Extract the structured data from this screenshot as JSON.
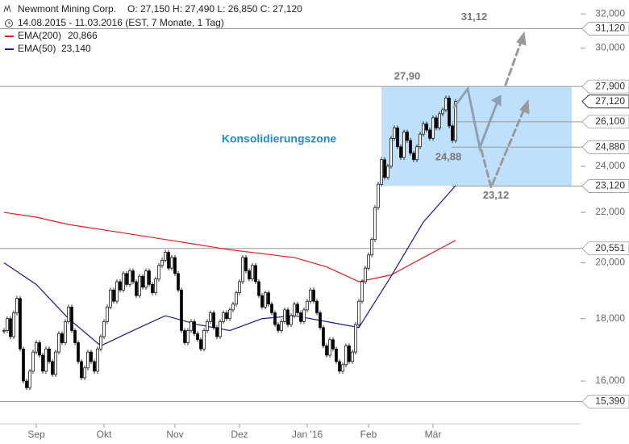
{
  "chart_data": {
    "type": "candlestick",
    "header": {
      "title": "Newmont Mining Corp.",
      "ohlc": "O: 27,150  H: 27,490  L: 26,850  C: 27,120",
      "period": "14.08.2015 - 11.03.2016 (EST, 7 Monate, 1 Tag)"
    },
    "log_scale": true,
    "ylim": [
      15.1,
      32.4
    ],
    "xlim": [
      -1.25,
      178.75
    ],
    "yticks": [
      {
        "value": 32,
        "label": "32,000"
      },
      {
        "value": 30,
        "label": "30,000"
      },
      {
        "value": 24,
        "label": "24,000"
      },
      {
        "value": 22,
        "label": "22,000"
      },
      {
        "value": 20,
        "label": "20,000"
      },
      {
        "value": 18,
        "label": "18,000"
      },
      {
        "value": 16,
        "label": "16,000"
      }
    ],
    "xticks": [
      {
        "value": 10,
        "label": "Sep"
      },
      {
        "value": 31,
        "label": "Okt"
      },
      {
        "value": 53,
        "label": "Nov"
      },
      {
        "value": 73,
        "label": "Dez"
      },
      {
        "value": 94,
        "label": "Jan '16"
      },
      {
        "value": 113,
        "label": "Feb"
      },
      {
        "value": 133,
        "label": "Mär"
      }
    ],
    "series": [
      {
        "name": "Newmont Mining Corp.",
        "color": "#000000",
        "values": [
          17.6,
          18.0,
          17.4,
          18.2,
          18.7,
          17.0,
          16.0,
          15.8,
          16.3,
          16.9,
          17.2,
          16.8,
          16.3,
          17.0,
          16.6,
          16.2,
          16.9,
          17.5,
          17.2,
          17.9,
          18.4,
          17.6,
          17.2,
          16.6,
          16.1,
          16.4,
          16.9,
          16.6,
          16.3,
          17.0,
          17.4,
          17.9,
          18.4,
          19.0,
          18.6,
          19.3,
          19.0,
          19.6,
          19.2,
          19.7,
          19.3,
          18.8,
          19.5,
          19.1,
          19.7,
          19.2,
          18.9,
          19.4,
          19.9,
          20.1,
          20.4,
          19.8,
          20.2,
          19.6,
          19.0,
          17.6,
          17.2,
          17.6,
          17.9,
          17.5,
          17.3,
          17.0,
          17.6,
          17.9,
          18.2,
          17.7,
          17.4,
          17.9,
          18.2,
          18.0,
          18.3,
          18.5,
          18.9,
          19.3,
          20.2,
          19.7,
          19.4,
          19.9,
          19.3,
          18.8,
          18.4,
          18.9,
          18.5,
          18.2,
          17.8,
          17.6,
          17.9,
          18.3,
          17.8,
          18.1,
          18.5,
          18.2,
          17.9,
          18.3,
          18.6,
          19.0,
          18.6,
          18.2,
          17.7,
          17.1,
          16.8,
          17.3,
          17.0,
          16.6,
          16.3,
          16.5,
          17.1,
          16.6,
          16.9,
          17.8,
          18.6,
          19.3,
          19.8,
          20.3,
          20.9,
          22.2,
          23.2,
          24.3,
          23.5,
          24.0,
          25.3,
          25.8,
          24.9,
          24.4,
          25.6,
          25.2,
          24.6,
          24.3,
          24.9,
          25.5,
          26.0,
          25.7,
          25.3,
          26.3,
          25.8,
          26.5,
          26.7,
          27.3,
          25.9,
          25.2,
          27.12
        ]
      },
      {
        "name": "EMA(200)",
        "legend_value": "20,866",
        "color": "#e02020",
        "x": [
          0,
          10,
          20,
          30,
          40,
          50,
          60,
          70,
          80,
          90,
          100,
          110,
          120,
          130,
          140
        ],
        "values": [
          22.0,
          21.8,
          21.5,
          21.3,
          21.1,
          20.9,
          20.7,
          20.5,
          20.35,
          20.2,
          19.85,
          19.3,
          19.55,
          20.2,
          20.866
        ]
      },
      {
        "name": "EMA(50)",
        "legend_value": "23,140",
        "color": "#1a1a8c",
        "x": [
          0,
          10,
          20,
          30,
          40,
          50,
          60,
          70,
          80,
          90,
          100,
          110,
          120,
          130,
          140
        ],
        "values": [
          20.0,
          19.2,
          18.0,
          17.1,
          17.6,
          18.1,
          17.8,
          17.6,
          18.0,
          18.1,
          17.9,
          17.7,
          19.5,
          21.6,
          23.14
        ]
      }
    ],
    "levels": [
      {
        "value": 31.12,
        "label": "31,120",
        "full": true
      },
      {
        "value": 27.9,
        "label": "27,900",
        "full": true
      },
      {
        "value": 26.1,
        "label": "26,100",
        "full": false
      },
      {
        "value": 24.88,
        "label": "24,880",
        "full": false
      },
      {
        "value": 23.12,
        "label": "23,120",
        "full": false
      },
      {
        "value": 20.551,
        "label": "20,551",
        "full": true
      },
      {
        "value": 15.39,
        "label": "15,390",
        "full": true
      }
    ],
    "last_price": {
      "value": 27.12,
      "label": "27,120"
    },
    "zone": {
      "label": "Konsolidierungszone",
      "top": 27.9,
      "bottom": 23.12,
      "color": "#bfe0fa"
    },
    "annotations": [
      {
        "text": "31,12",
        "value": 31.12
      },
      {
        "text": "27,90",
        "value": 27.9
      },
      {
        "text": "24,88",
        "value": 24.88
      },
      {
        "text": "23,12",
        "value": 23.12
      }
    ]
  }
}
